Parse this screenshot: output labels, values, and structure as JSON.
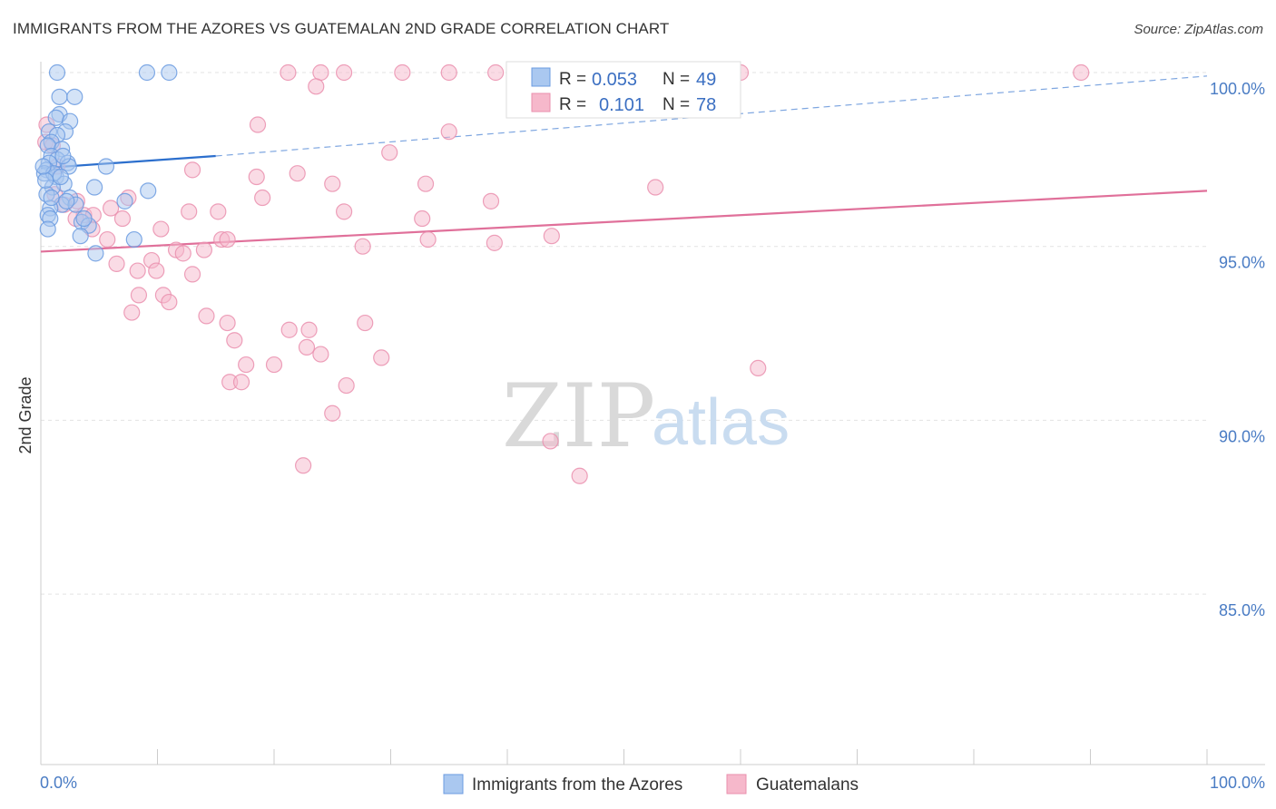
{
  "title": "IMMIGRANTS FROM THE AZORES VS GUATEMALAN 2ND GRADE CORRELATION CHART",
  "source": "Source: ZipAtlas.com",
  "watermark": {
    "part1": "ZIP",
    "part2": "atlas"
  },
  "colors": {
    "azores_fill": "#aac8f0",
    "azores_stroke": "#6b9be0",
    "azores_line": "#2c6fcd",
    "guat_fill": "#f6b8cb",
    "guat_stroke": "#ea8fae",
    "guat_line": "#e0709a",
    "grid": "#e3e3e3",
    "axis_text": "#4a7cc4"
  },
  "chart_data": {
    "type": "scatter",
    "title": "IMMIGRANTS FROM THE AZORES VS GUATEMALAN 2ND GRADE CORRELATION CHART",
    "xlabel": "",
    "ylabel": "2nd Grade",
    "xlim": [
      0,
      100
    ],
    "ylim": [
      80.5,
      100.6
    ],
    "x_tick_labels": [
      "0.0%",
      "100.0%"
    ],
    "y_ticks": [
      85,
      90,
      95,
      100
    ],
    "y_tick_labels": [
      "85.0%",
      "90.0%",
      "95.0%",
      "100.0%"
    ],
    "legend": {
      "placement": "bottom-center"
    },
    "series": [
      {
        "name": "Immigrants from the Azores",
        "R": "0.053",
        "N": "49",
        "trend": {
          "x0": 0,
          "y0": 97.25,
          "x1": 15,
          "y1": 97.6,
          "dashed_to_x": 100,
          "dashed_to_y": 99.9
        },
        "points": [
          [
            1.4,
            100.0
          ],
          [
            9.1,
            100.0
          ],
          [
            11.0,
            100.0
          ],
          [
            1.6,
            99.3
          ],
          [
            2.9,
            99.3
          ],
          [
            1.6,
            98.8
          ],
          [
            1.3,
            98.7
          ],
          [
            2.5,
            98.6
          ],
          [
            0.7,
            98.3
          ],
          [
            2.1,
            98.3
          ],
          [
            1.4,
            98.2
          ],
          [
            0.9,
            98.0
          ],
          [
            0.6,
            97.9
          ],
          [
            1.8,
            97.8
          ],
          [
            0.9,
            97.6
          ],
          [
            1.4,
            97.5
          ],
          [
            0.7,
            97.4
          ],
          [
            2.3,
            97.4
          ],
          [
            5.6,
            97.3
          ],
          [
            0.5,
            97.2
          ],
          [
            0.3,
            97.1
          ],
          [
            1.3,
            97.0
          ],
          [
            2.0,
            96.8
          ],
          [
            1.0,
            96.7
          ],
          [
            4.6,
            96.7
          ],
          [
            9.2,
            96.6
          ],
          [
            0.5,
            96.5
          ],
          [
            2.5,
            96.4
          ],
          [
            7.2,
            96.3
          ],
          [
            1.8,
            96.2
          ],
          [
            3.0,
            96.2
          ],
          [
            0.8,
            96.1
          ],
          [
            0.6,
            95.9
          ],
          [
            0.8,
            95.8
          ],
          [
            3.5,
            95.7
          ],
          [
            4.1,
            95.6
          ],
          [
            0.6,
            95.5
          ],
          [
            3.4,
            95.3
          ],
          [
            8.0,
            95.2
          ],
          [
            4.7,
            94.8
          ],
          [
            1.1,
            97.1
          ],
          [
            2.4,
            97.3
          ],
          [
            1.9,
            97.6
          ],
          [
            0.4,
            96.9
          ],
          [
            0.2,
            97.3
          ],
          [
            1.7,
            97.0
          ],
          [
            0.9,
            96.4
          ],
          [
            3.7,
            95.8
          ],
          [
            2.2,
            96.3
          ]
        ]
      },
      {
        "name": "Guatemalans",
        "R": "0.101",
        "N": "78",
        "trend": {
          "x0": 0,
          "y0": 94.85,
          "x1": 100,
          "y1": 96.6
        },
        "points": [
          [
            21.2,
            100.0
          ],
          [
            24.0,
            100.0
          ],
          [
            26.0,
            100.0
          ],
          [
            31.0,
            100.0
          ],
          [
            35.0,
            100.0
          ],
          [
            39.0,
            100.0
          ],
          [
            44.5,
            100.0
          ],
          [
            60.0,
            100.0
          ],
          [
            89.2,
            100.0
          ],
          [
            23.6,
            99.6
          ],
          [
            18.6,
            98.5
          ],
          [
            35.0,
            98.3
          ],
          [
            0.5,
            98.5
          ],
          [
            0.4,
            98.0
          ],
          [
            1.0,
            97.9
          ],
          [
            29.9,
            97.7
          ],
          [
            13.0,
            97.2
          ],
          [
            1.4,
            97.3
          ],
          [
            22.0,
            97.1
          ],
          [
            18.5,
            97.0
          ],
          [
            25.0,
            96.8
          ],
          [
            33.0,
            96.8
          ],
          [
            52.7,
            96.7
          ],
          [
            1.2,
            96.5
          ],
          [
            7.5,
            96.4
          ],
          [
            19.0,
            96.4
          ],
          [
            38.6,
            96.3
          ],
          [
            3.1,
            96.3
          ],
          [
            2.0,
            96.2
          ],
          [
            6.0,
            96.1
          ],
          [
            12.7,
            96.0
          ],
          [
            15.2,
            96.0
          ],
          [
            26.0,
            96.0
          ],
          [
            3.7,
            95.9
          ],
          [
            3.0,
            95.8
          ],
          [
            4.5,
            95.9
          ],
          [
            7.0,
            95.8
          ],
          [
            32.7,
            95.8
          ],
          [
            10.3,
            95.5
          ],
          [
            4.4,
            95.5
          ],
          [
            15.5,
            95.2
          ],
          [
            5.7,
            95.2
          ],
          [
            16.0,
            95.2
          ],
          [
            33.2,
            95.2
          ],
          [
            38.9,
            95.1
          ],
          [
            43.8,
            95.3
          ],
          [
            27.6,
            95.0
          ],
          [
            11.6,
            94.9
          ],
          [
            14.0,
            94.9
          ],
          [
            12.2,
            94.8
          ],
          [
            9.5,
            94.6
          ],
          [
            6.5,
            94.5
          ],
          [
            8.3,
            94.3
          ],
          [
            9.9,
            94.3
          ],
          [
            13.0,
            94.2
          ],
          [
            8.4,
            93.6
          ],
          [
            10.5,
            93.6
          ],
          [
            11.0,
            93.4
          ],
          [
            7.8,
            93.1
          ],
          [
            14.2,
            93.0
          ],
          [
            16.0,
            92.8
          ],
          [
            27.8,
            92.8
          ],
          [
            21.3,
            92.6
          ],
          [
            23.0,
            92.6
          ],
          [
            16.6,
            92.3
          ],
          [
            22.8,
            92.1
          ],
          [
            24.0,
            91.9
          ],
          [
            29.2,
            91.8
          ],
          [
            17.6,
            91.6
          ],
          [
            20.0,
            91.6
          ],
          [
            61.5,
            91.5
          ],
          [
            16.2,
            91.1
          ],
          [
            17.2,
            91.1
          ],
          [
            26.2,
            91.0
          ],
          [
            25.0,
            90.2
          ],
          [
            43.7,
            89.4
          ],
          [
            22.5,
            88.7
          ],
          [
            46.2,
            88.4
          ]
        ]
      }
    ]
  },
  "legend_items": [
    "Immigrants from the Azores",
    "Guatemalans"
  ]
}
